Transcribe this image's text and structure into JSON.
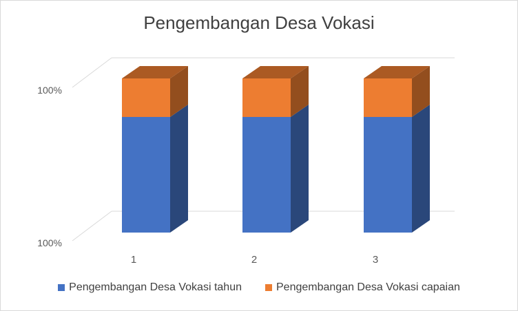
{
  "chart_data": {
    "type": "bar",
    "stacked": true,
    "three_d": true,
    "title": "Pengembangan Desa Vokasi",
    "categories": [
      "1",
      "2",
      "3"
    ],
    "y_tick_labels": [
      "100%",
      "100%"
    ],
    "series": [
      {
        "name": "Pengembangan Desa Vokasi tahun",
        "values": [
          0.75,
          0.75,
          0.75
        ],
        "color": "#4472C4"
      },
      {
        "name": "Pengembangan Desa Vokasi capaian",
        "values": [
          0.25,
          0.25,
          0.25
        ],
        "color": "#ED7D31"
      }
    ],
    "legend_position": "bottom",
    "gridlines": true
  }
}
